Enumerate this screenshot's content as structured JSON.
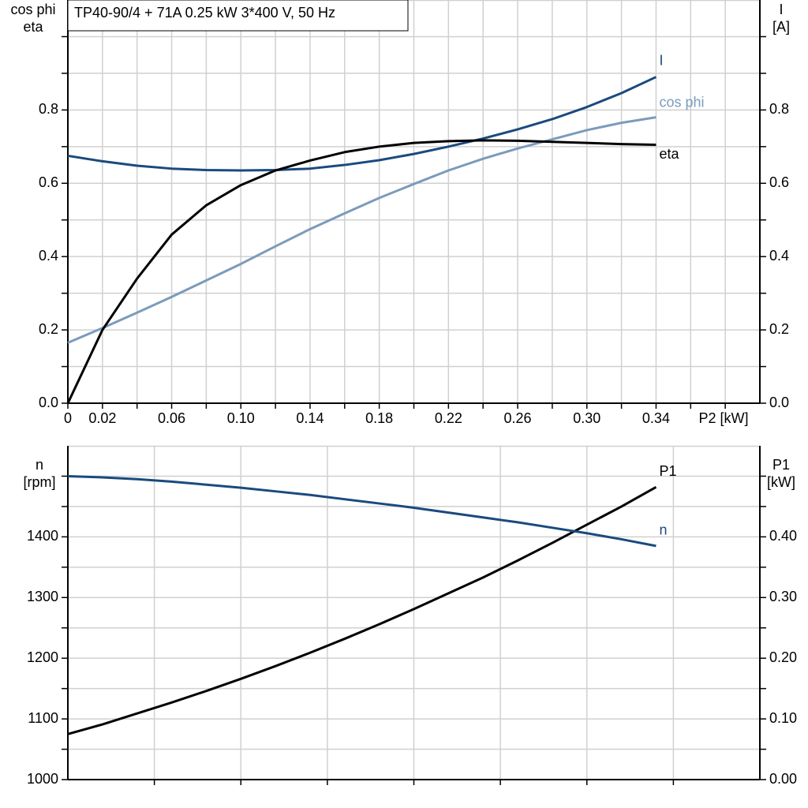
{
  "chart_data": [
    {
      "type": "line",
      "title": "TP40-90/4 + 71A   0.25 kW   3*400 V, 50 Hz",
      "ylabel": [
        "cos phi",
        "eta"
      ],
      "y2label": [
        "I",
        "[A]"
      ],
      "xlabel": "P2 [kW]",
      "xlim": [
        0,
        0.4
      ],
      "xticks": [
        0,
        0.02,
        {
          "value": 0.04,
          "label": null
        },
        0.06,
        {
          "value": 0.08,
          "label": null
        },
        {
          "value": 0.1,
          "label": "0.10"
        },
        {
          "value": 0.12,
          "label": null
        },
        0.14,
        {
          "value": 0.16,
          "label": null
        },
        0.18,
        {
          "value": 0.2,
          "label": null
        },
        0.22,
        {
          "value": 0.24,
          "label": null
        },
        0.26,
        {
          "value": 0.28,
          "label": null
        },
        {
          "value": 0.3,
          "label": "0.30"
        },
        {
          "value": 0.32,
          "label": null
        },
        0.34,
        {
          "value": 0.36,
          "label": null
        },
        {
          "value": 0.38,
          "label": null
        }
      ],
      "ylim": [
        0,
        1.1
      ],
      "yticks": [
        {
          "value": 0,
          "label": "0.0"
        },
        {
          "value": 0.1,
          "label": null
        },
        0.2,
        {
          "value": 0.3,
          "label": null
        },
        0.4,
        {
          "value": 0.5,
          "label": null
        },
        0.6,
        {
          "value": 0.7,
          "label": null
        },
        0.8,
        {
          "value": 0.9,
          "label": null
        },
        {
          "value": 1.0,
          "label": null
        }
      ],
      "y2lim": [
        0,
        1.1
      ],
      "y2ticks": [
        {
          "value": 0,
          "label": "0.0"
        },
        {
          "value": 0.1,
          "label": null
        },
        0.2,
        {
          "value": 0.3,
          "label": null
        },
        0.4,
        {
          "value": 0.5,
          "label": null
        },
        0.6,
        {
          "value": 0.7,
          "label": null
        },
        0.8,
        {
          "value": 0.9,
          "label": null
        },
        {
          "value": 1.0,
          "label": null
        }
      ],
      "grid": true,
      "x": [
        0,
        0.02,
        0.04,
        0.06,
        0.08,
        0.1,
        0.12,
        0.14,
        0.16,
        0.18,
        0.2,
        0.22,
        0.24,
        0.26,
        0.28,
        0.3,
        0.32,
        0.34
      ],
      "series": [
        {
          "name": "I",
          "color": "#1a4a7e",
          "axis": "y2",
          "values": [
            0.675,
            0.66,
            0.648,
            0.64,
            0.636,
            0.635,
            0.636,
            0.64,
            0.65,
            0.663,
            0.68,
            0.7,
            0.722,
            0.747,
            0.775,
            0.808,
            0.846,
            0.89
          ]
        },
        {
          "name": "cos phi",
          "color": "#7b9bbb",
          "values": [
            0.165,
            0.205,
            0.247,
            0.29,
            0.335,
            0.38,
            0.428,
            0.475,
            0.518,
            0.56,
            0.598,
            0.635,
            0.667,
            0.695,
            0.72,
            0.745,
            0.765,
            0.78
          ]
        },
        {
          "name": "eta",
          "color": "#000000",
          "values": [
            0,
            0.2,
            0.34,
            0.46,
            0.54,
            0.595,
            0.635,
            0.662,
            0.685,
            0.7,
            0.71,
            0.715,
            0.717,
            0.716,
            0.713,
            0.71,
            0.707,
            0.705
          ]
        }
      ]
    },
    {
      "type": "line",
      "ylabel": [
        "n",
        "[rpm]"
      ],
      "y2label": [
        "P1",
        "[kW]"
      ],
      "xlim": [
        0,
        0.4
      ],
      "xticks": [
        {
          "value": 0.05,
          "label": null
        },
        {
          "value": 0.1,
          "label": null
        },
        {
          "value": 0.15,
          "label": null
        },
        {
          "value": 0.2,
          "label": null
        },
        {
          "value": 0.25,
          "label": null
        },
        {
          "value": 0.3,
          "label": null
        },
        {
          "value": 0.35,
          "label": null
        }
      ],
      "ylim": [
        1000,
        1550
      ],
      "yticks": [
        1000,
        {
          "value": 1050,
          "label": null
        },
        1100,
        {
          "value": 1150,
          "label": null
        },
        1200,
        {
          "value": 1250,
          "label": null
        },
        1300,
        {
          "value": 1350,
          "label": null
        },
        1400,
        {
          "value": 1450,
          "label": null
        },
        {
          "value": 1500,
          "label": null
        }
      ],
      "y2lim": [
        0,
        0.55
      ],
      "y2ticks": [
        {
          "value": 0,
          "label": "0.00"
        },
        {
          "value": 0.05,
          "label": null
        },
        {
          "value": 0.1,
          "label": "0.10"
        },
        {
          "value": 0.15,
          "label": null
        },
        {
          "value": 0.2,
          "label": "0.20"
        },
        {
          "value": 0.25,
          "label": null
        },
        {
          "value": 0.3,
          "label": "0.30"
        },
        {
          "value": 0.35,
          "label": null
        },
        {
          "value": 0.4,
          "label": "0.40"
        },
        {
          "value": 0.45,
          "label": null
        },
        {
          "value": 0.5,
          "label": null
        }
      ],
      "grid": true,
      "x": [
        0,
        0.02,
        0.04,
        0.06,
        0.08,
        0.1,
        0.12,
        0.14,
        0.16,
        0.18,
        0.2,
        0.22,
        0.24,
        0.26,
        0.28,
        0.3,
        0.32,
        0.34
      ],
      "series": [
        {
          "name": "P1",
          "color": "#000000",
          "axis": "y2",
          "values": [
            0.075,
            0.091,
            0.109,
            0.127,
            0.146,
            0.166,
            0.187,
            0.209,
            0.232,
            0.256,
            0.281,
            0.307,
            0.333,
            0.361,
            0.39,
            0.42,
            0.45,
            0.482
          ]
        },
        {
          "name": "n",
          "color": "#1a4a7e",
          "values": [
            1500,
            1498,
            1495,
            1491,
            1486,
            1481,
            1475,
            1469,
            1462,
            1455,
            1448,
            1440,
            1432,
            1424,
            1415,
            1406,
            1396,
            1385
          ]
        }
      ]
    }
  ]
}
